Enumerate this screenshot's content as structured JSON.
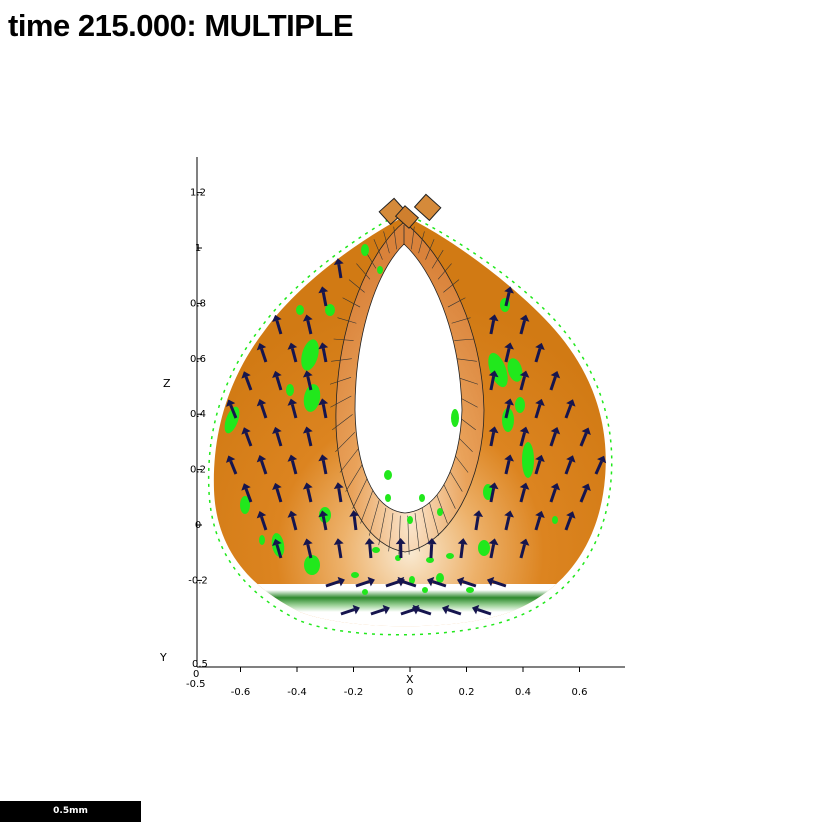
{
  "title": "time 215.000: MULTIPLE",
  "scale_bar_label": "0.5mm",
  "chart_data": {
    "type": "scatter",
    "description_free": true,
    "xlabel": "X",
    "zlabel": "Z",
    "ylabel": "Y",
    "x_ticks": [
      "-0.6",
      "-0.4",
      "-0.2",
      "0",
      "0.2",
      "0.4",
      "0.6"
    ],
    "x_tick_values": [
      -0.6,
      -0.4,
      -0.2,
      0,
      0.2,
      0.4,
      0.6
    ],
    "z_ticks": [
      "1.2",
      "1",
      "0.8",
      "0.6",
      "0.4",
      "0.2",
      "0",
      "-0.2"
    ],
    "z_tick_values": [
      1.2,
      1.0,
      0.8,
      0.6,
      0.4,
      0.2,
      0,
      -0.2
    ],
    "y_ticks": [
      "0.5",
      "0",
      "-0.5"
    ],
    "xlim": [
      -0.75,
      0.78
    ],
    "zlim": [
      -0.5,
      1.3
    ],
    "colors": {
      "surface": "#d9801a",
      "surface_light": "#f6dcb4",
      "inner_wall": "#d8883a",
      "green_marks": "#21e81c",
      "arrows": "#16154e",
      "band": "#3a9a3a"
    }
  }
}
